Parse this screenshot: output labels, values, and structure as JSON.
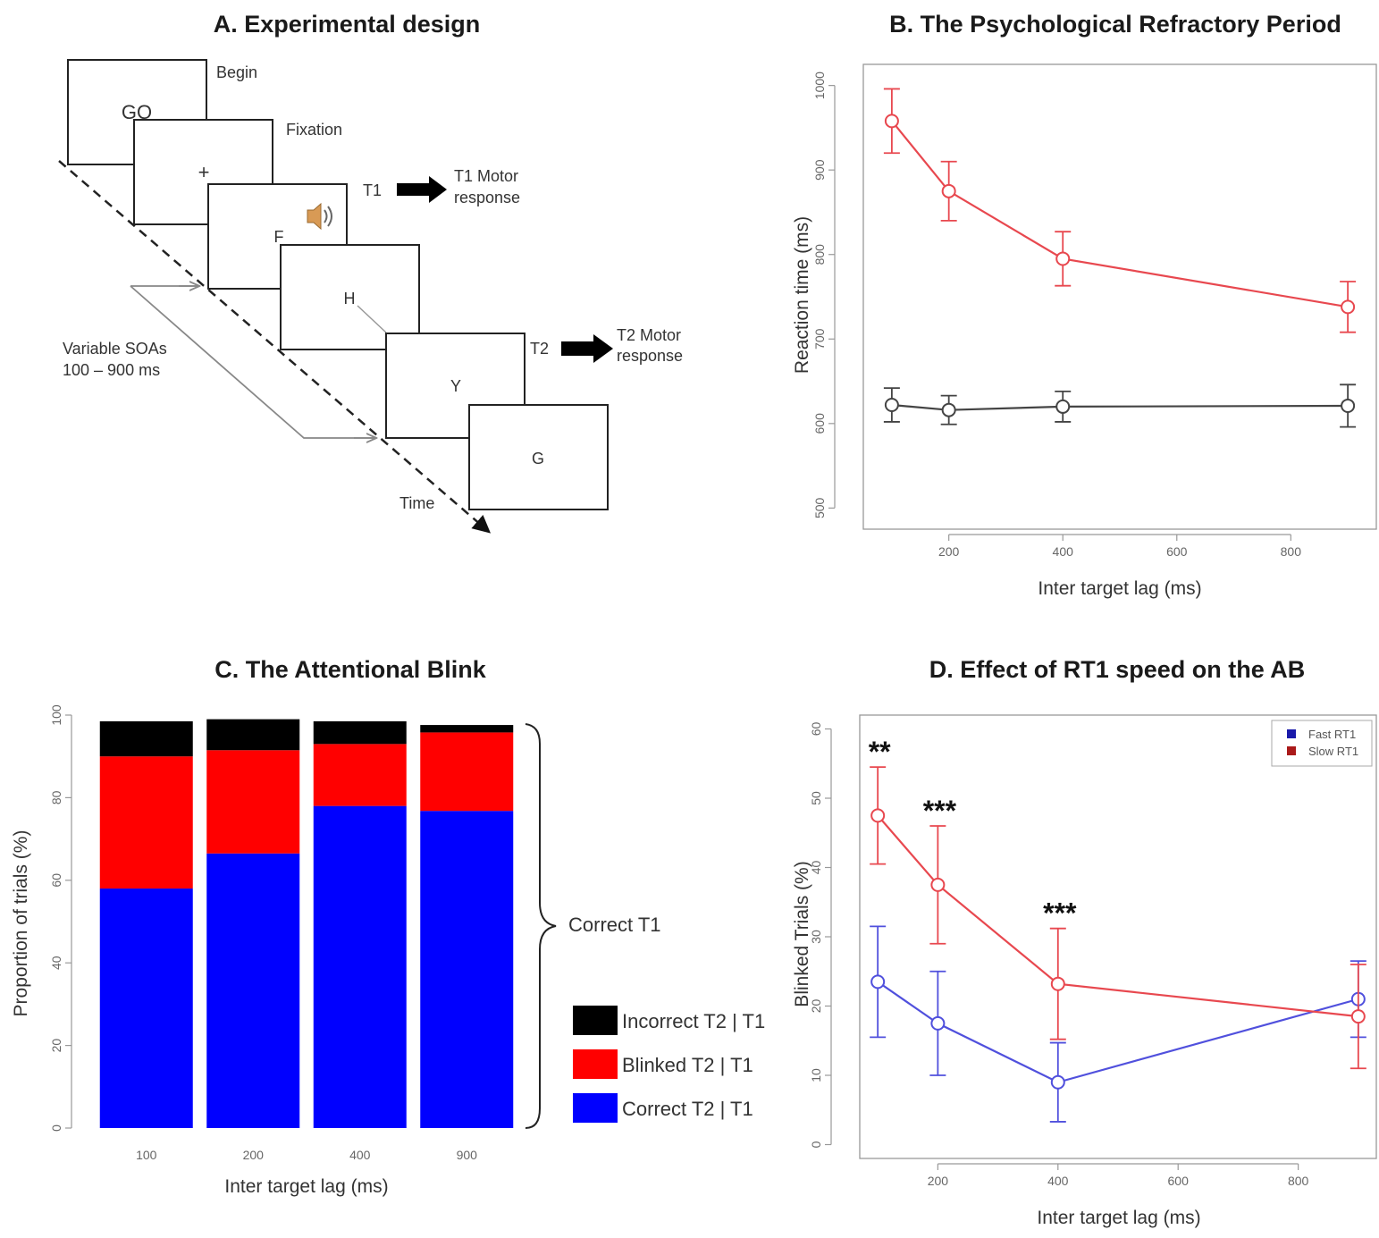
{
  "colors": {
    "red": "#e8484f",
    "dark": "#444444",
    "blue": "#5050dd",
    "bar_blue": "#0000ff",
    "bar_red": "#ff0000",
    "bar_black": "#000000"
  },
  "panel_a": {
    "title": "A. Experimental design",
    "screens": {
      "go": "GO",
      "fixation": "+",
      "t1": "F",
      "mask1": "H",
      "t2": "Y",
      "mask2": "G"
    },
    "labels": {
      "begin": "Begin",
      "fixation": "Fixation",
      "t1": "T1",
      "t1_response_1": "T1 Motor",
      "t1_response_2": "response",
      "t2": "T2",
      "t2_response_1": "T2 Motor",
      "t2_response_2": "response",
      "soa_1": "Variable SOAs",
      "soa_2": "100 – 900 ms",
      "time": "Time"
    },
    "icon": "speaker-icon"
  },
  "chart_data": [
    {
      "panel": "B",
      "type": "line",
      "title": "B. The Psychological Refractory Period",
      "xlabel": "Inter target lag (ms)",
      "ylabel": "Reaction time (ms)",
      "xlim": [
        50,
        950
      ],
      "ylim": [
        475,
        1025
      ],
      "xticks": [
        200,
        400,
        600,
        800
      ],
      "yticks": [
        500,
        600,
        700,
        800,
        900,
        1000
      ],
      "x": [
        100,
        200,
        400,
        900
      ],
      "series": [
        {
          "key": "red",
          "values": [
            958,
            875,
            795,
            738
          ],
          "err": [
            38,
            35,
            32,
            30
          ]
        },
        {
          "key": "dark",
          "values": [
            622,
            616,
            620,
            621
          ],
          "err": [
            20,
            17,
            18,
            25
          ]
        }
      ]
    },
    {
      "panel": "C",
      "type": "bar",
      "title": "C. The Attentional Blink",
      "xlabel": "Inter target lag (ms)",
      "ylabel": "Proportion of trials (%)",
      "ylim": [
        0,
        100
      ],
      "yticks": [
        0,
        20,
        40,
        60,
        80,
        100
      ],
      "categories": [
        "100",
        "200",
        "400",
        "900"
      ],
      "series": [
        {
          "name": "Correct T2 | T1",
          "key": "bar_blue",
          "values": [
            58,
            66.5,
            78,
            76.8
          ]
        },
        {
          "name": "Blinked T2 | T1",
          "key": "bar_red",
          "values": [
            32,
            25,
            15,
            19
          ]
        },
        {
          "name": "Incorrect T2 | T1",
          "key": "bar_black",
          "values": [
            8.5,
            7.5,
            5.5,
            1.8
          ]
        }
      ],
      "brace_label": "Correct T1"
    },
    {
      "panel": "D",
      "type": "line",
      "title": "D. Effect of RT1 speed on the AB",
      "xlabel": "Inter target lag (ms)",
      "ylabel": "Blinked Trials (%)",
      "xlim": [
        70,
        930
      ],
      "ylim": [
        -2,
        62
      ],
      "xticks": [
        200,
        400,
        600,
        800
      ],
      "yticks": [
        0,
        10,
        20,
        30,
        40,
        50,
        60
      ],
      "x": [
        100,
        200,
        400,
        900
      ],
      "legend_position": "top-right",
      "series": [
        {
          "name": "Fast RT1",
          "key": "blue",
          "values": [
            23.5,
            17.5,
            9,
            21
          ],
          "err": [
            8,
            7.5,
            5.7,
            5.5
          ]
        },
        {
          "name": "Slow RT1",
          "key": "red",
          "values": [
            47.5,
            37.5,
            23.2,
            18.5
          ],
          "err": [
            7,
            8.5,
            8,
            7.5
          ]
        }
      ],
      "annotations": [
        {
          "x": 100,
          "text": "**"
        },
        {
          "x": 200,
          "text": "***"
        },
        {
          "x": 400,
          "text": "***"
        }
      ]
    }
  ]
}
